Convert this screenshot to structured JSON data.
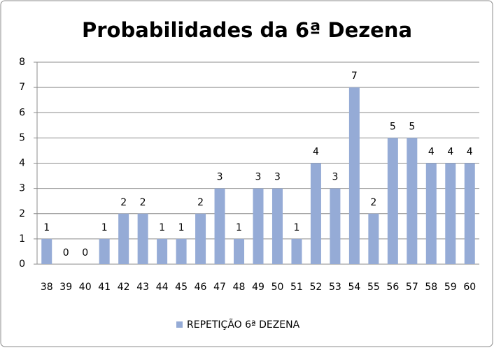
{
  "chart_data": {
    "type": "bar",
    "title": "Probabilidades da 6ª Dezena",
    "categories": [
      "38",
      "39",
      "40",
      "41",
      "42",
      "43",
      "44",
      "45",
      "46",
      "47",
      "48",
      "49",
      "50",
      "51",
      "52",
      "53",
      "54",
      "55",
      "56",
      "57",
      "58",
      "59",
      "60"
    ],
    "series": [
      {
        "name": "REPETIÇÃO 6ª DEZENA",
        "color": "#95abd6",
        "values": [
          1,
          0,
          0,
          1,
          2,
          2,
          1,
          1,
          2,
          3,
          1,
          3,
          3,
          1,
          4,
          3,
          7,
          2,
          5,
          5,
          4,
          4,
          4
        ]
      }
    ],
    "ylim": [
      0,
      8
    ],
    "yticks": [
      0,
      1,
      2,
      3,
      4,
      5,
      6,
      7,
      8
    ],
    "grid": true,
    "legend": "bottom"
  }
}
